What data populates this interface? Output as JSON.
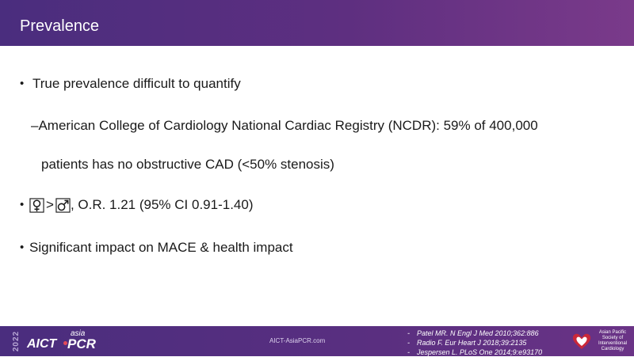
{
  "header": {
    "title": "Prevalence"
  },
  "body": {
    "bullet_glyph": "•",
    "items": [
      {
        "text": "True prevalence difficult to quantify"
      },
      {
        "text": "–American College of Cardiology National Cardiac Registry (NCDR): 59% of 400,000"
      },
      {
        "text": "patients has no obstructive CAD (<50% stenosis)"
      },
      {
        "comparison": ">",
        "text": ", O.R. 1.21 (95% CI 0.91-1.40)",
        "female_icon": "female-symbol-icon",
        "male_icon": "male-symbol-icon"
      },
      {
        "text": "Significant impact on MACE & health impact"
      }
    ]
  },
  "footer": {
    "year": "2022",
    "logo": {
      "aict": "AICT",
      "asia": "asia",
      "pcr": "PCR"
    },
    "site": "AICT-AsiaPCR.com",
    "references": [
      "Patel MR. N Engl J Med  2010;362:886",
      "Radio F. Eur Heart J 2018;39:2135",
      "Jespersen L. PLoS One 2014;9:e93170"
    ],
    "ref_dash": "-",
    "society": [
      "Asian Pacific",
      "Society of",
      "Interventional",
      "Cardiology"
    ]
  },
  "colors": {
    "header_bg": "#4a2d7e",
    "accent_red": "#c9283a",
    "text": "#1a1a1a"
  }
}
